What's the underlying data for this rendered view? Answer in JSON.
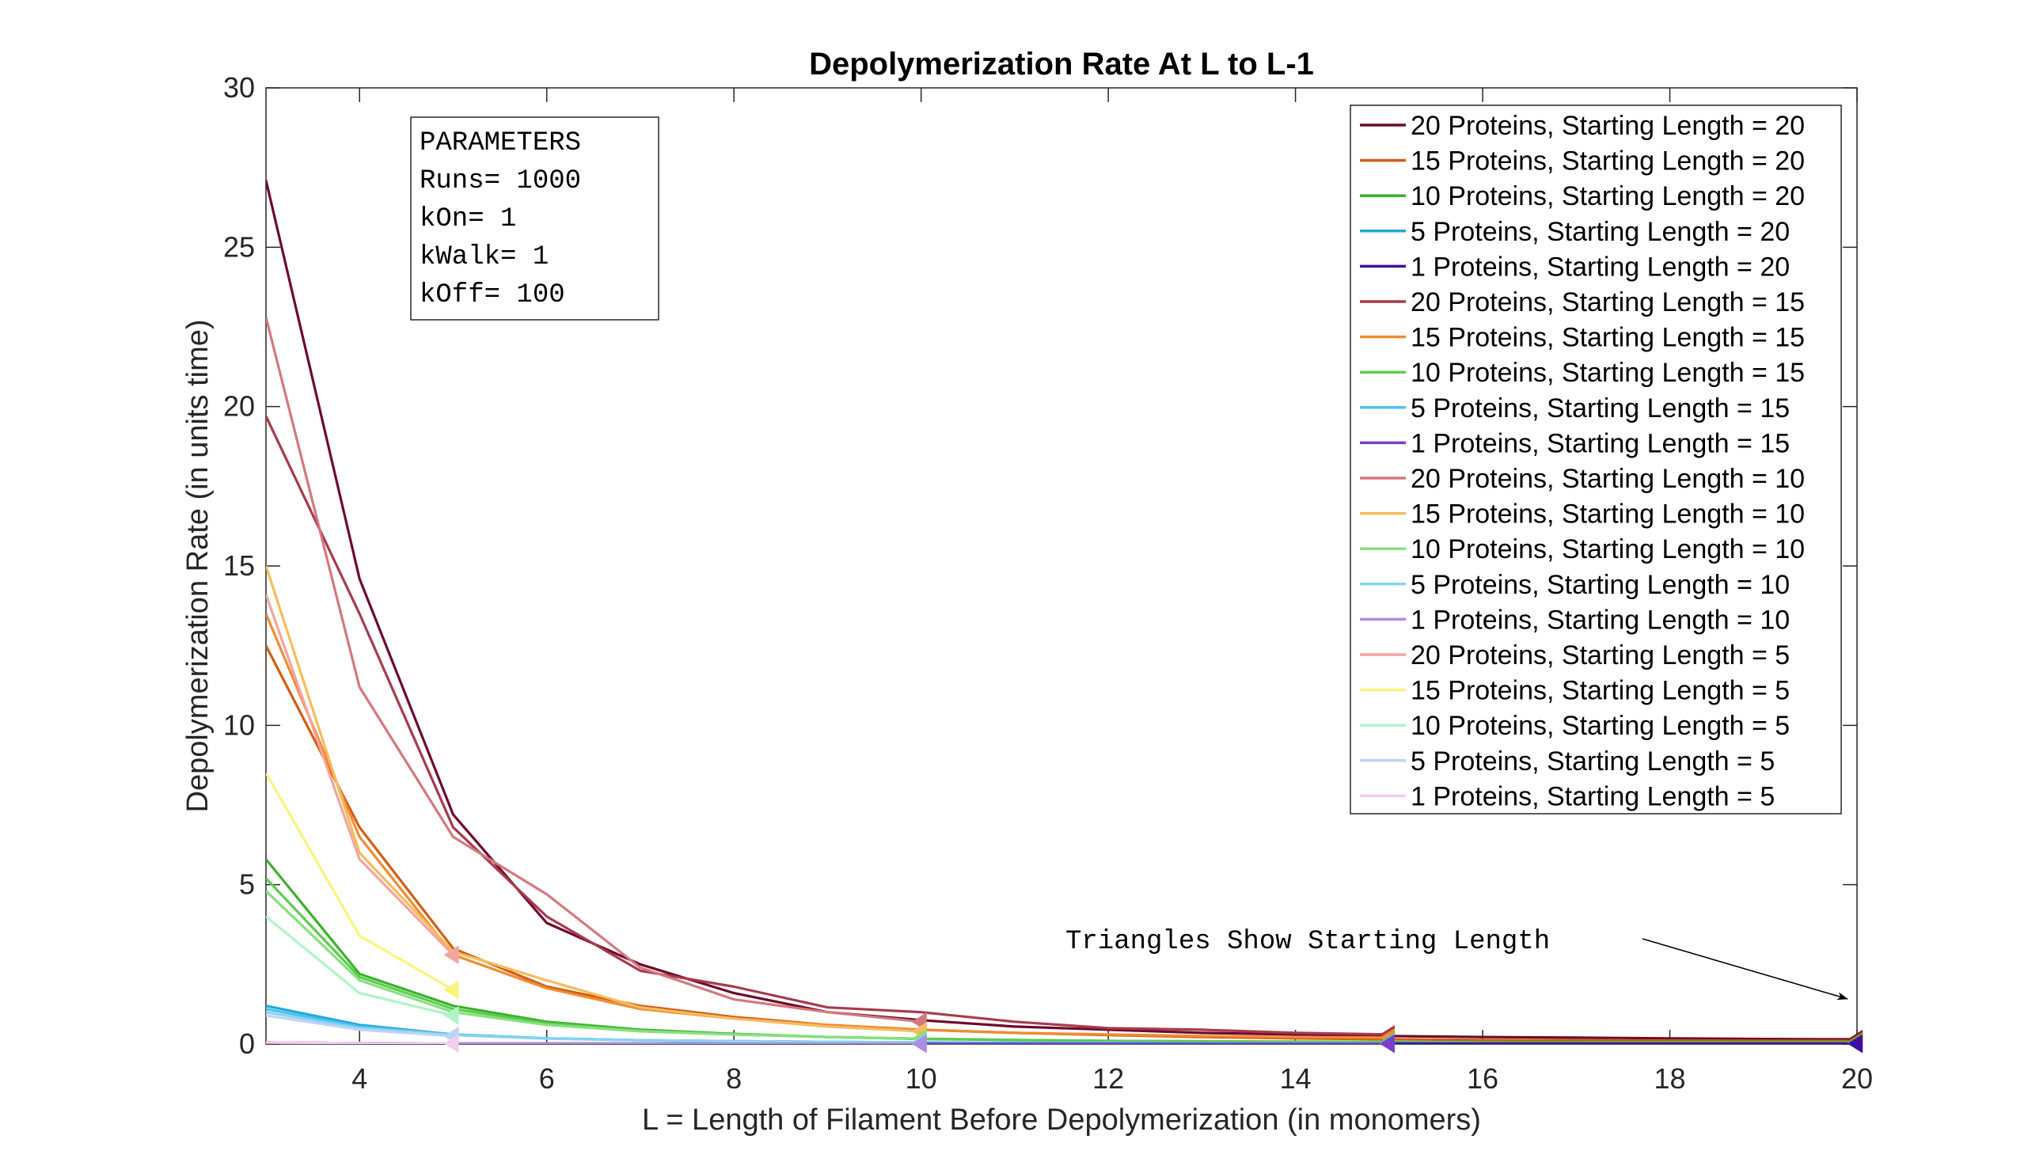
{
  "chart_data": {
    "type": "line",
    "title": "Depolymerization Rate At L to L-1",
    "xlabel": "L = Length of Filament Before Depolymerization (in monomers)",
    "ylabel": "Depolymerization Rate (in units time)",
    "xlim": [
      3,
      20
    ],
    "ylim": [
      0,
      30
    ],
    "xticks": [
      4,
      6,
      8,
      10,
      12,
      14,
      16,
      18,
      20
    ],
    "yticks": [
      0,
      5,
      10,
      15,
      20,
      25,
      30
    ],
    "grid": false,
    "legend_position": "top-right",
    "parameters_box": {
      "lines": [
        "PARAMETERS",
        "Runs= 1000",
        "kOn= 1",
        "kWalk= 1",
        "kOff= 100"
      ]
    },
    "annotation": {
      "text": "Triangles Show Starting Length",
      "points_to_x": 20,
      "points_to_y": 1.5
    },
    "series": [
      {
        "name": "20 Proteins, Starting Length = 20",
        "color": "#6e0a2e",
        "start_length": 20,
        "x": [
          3,
          4,
          5,
          6,
          7,
          8,
          9,
          10,
          11,
          12,
          13,
          14,
          15,
          16,
          17,
          18,
          19,
          20
        ],
        "y": [
          27.1,
          14.6,
          7.2,
          3.8,
          2.5,
          1.6,
          1.0,
          0.75,
          0.55,
          0.45,
          0.35,
          0.3,
          0.25,
          0.22,
          0.2,
          0.18,
          0.16,
          0.15
        ]
      },
      {
        "name": "15 Proteins, Starting Length = 20",
        "color": "#d45c14",
        "start_length": 20,
        "x": [
          3,
          4,
          5,
          6,
          7,
          8,
          9,
          10,
          11,
          12,
          13,
          14,
          15,
          16,
          17,
          18,
          19,
          20
        ],
        "y": [
          12.5,
          6.8,
          3.0,
          1.8,
          1.2,
          0.85,
          0.6,
          0.45,
          0.35,
          0.28,
          0.22,
          0.18,
          0.15,
          0.13,
          0.12,
          0.11,
          0.1,
          0.1
        ]
      },
      {
        "name": "10 Proteins, Starting Length = 20",
        "color": "#38b22a",
        "start_length": 20,
        "x": [
          3,
          4,
          5,
          6,
          7,
          8,
          9,
          10,
          11,
          12,
          13,
          14,
          15,
          16,
          17,
          18,
          19,
          20
        ],
        "y": [
          5.8,
          2.2,
          1.2,
          0.7,
          0.45,
          0.32,
          0.22,
          0.16,
          0.13,
          0.1,
          0.08,
          0.07,
          0.06,
          0.05,
          0.05,
          0.05,
          0.05,
          0.05
        ]
      },
      {
        "name": "5 Proteins, Starting Length = 20",
        "color": "#1fa8dc",
        "start_length": 20,
        "x": [
          3,
          4,
          5,
          6,
          7,
          8,
          9,
          10,
          11,
          12,
          13,
          14,
          15,
          16,
          17,
          18,
          19,
          20
        ],
        "y": [
          1.2,
          0.6,
          0.3,
          0.18,
          0.12,
          0.09,
          0.07,
          0.05,
          0.04,
          0.04,
          0.03,
          0.03,
          0.03,
          0.02,
          0.02,
          0.02,
          0.02,
          0.02
        ]
      },
      {
        "name": "1 Proteins, Starting Length = 20",
        "color": "#3f0fa0",
        "start_length": 20,
        "x": [
          3,
          4,
          5,
          6,
          7,
          8,
          9,
          10,
          11,
          12,
          13,
          14,
          15,
          16,
          17,
          18,
          19,
          20
        ],
        "y": [
          0.05,
          0.03,
          0.02,
          0.02,
          0.02,
          0.01,
          0.01,
          0.01,
          0.01,
          0.01,
          0.01,
          0.01,
          0.01,
          0.01,
          0.01,
          0.01,
          0.01,
          0.01
        ]
      },
      {
        "name": "20 Proteins, Starting Length = 15",
        "color": "#a83a4e",
        "start_length": 15,
        "x": [
          3,
          4,
          5,
          6,
          7,
          8,
          9,
          10,
          11,
          12,
          13,
          14,
          15
        ],
        "y": [
          19.7,
          13.5,
          6.8,
          4.0,
          2.3,
          1.8,
          1.15,
          1.0,
          0.7,
          0.5,
          0.45,
          0.35,
          0.3
        ]
      },
      {
        "name": "15 Proteins, Starting Length = 15",
        "color": "#f08c32",
        "start_length": 15,
        "x": [
          3,
          4,
          5,
          6,
          7,
          8,
          9,
          10,
          11,
          12,
          13,
          14,
          15
        ],
        "y": [
          13.5,
          6.5,
          2.8,
          1.75,
          1.1,
          0.8,
          0.6,
          0.45,
          0.35,
          0.3,
          0.25,
          0.22,
          0.2
        ]
      },
      {
        "name": "10 Proteins, Starting Length = 15",
        "color": "#5ccc50",
        "start_length": 15,
        "x": [
          3,
          4,
          5,
          6,
          7,
          8,
          9,
          10,
          11,
          12,
          13,
          14,
          15
        ],
        "y": [
          5.2,
          2.1,
          1.1,
          0.65,
          0.42,
          0.3,
          0.22,
          0.17,
          0.13,
          0.1,
          0.09,
          0.08,
          0.07
        ]
      },
      {
        "name": "5 Proteins, Starting Length = 15",
        "color": "#4cc0ee",
        "start_length": 15,
        "x": [
          3,
          4,
          5,
          6,
          7,
          8,
          9,
          10,
          11,
          12,
          13,
          14,
          15
        ],
        "y": [
          1.1,
          0.55,
          0.3,
          0.18,
          0.12,
          0.09,
          0.07,
          0.05,
          0.04,
          0.04,
          0.03,
          0.03,
          0.03
        ]
      },
      {
        "name": "1 Proteins, Starting Length = 15",
        "color": "#7840c8",
        "start_length": 15,
        "x": [
          3,
          4,
          5,
          6,
          7,
          8,
          9,
          10,
          11,
          12,
          13,
          14,
          15
        ],
        "y": [
          0.05,
          0.03,
          0.02,
          0.02,
          0.02,
          0.01,
          0.01,
          0.01,
          0.01,
          0.01,
          0.01,
          0.01,
          0.01
        ]
      },
      {
        "name": "20 Proteins, Starting Length = 10",
        "color": "#d4787c",
        "start_length": 10,
        "x": [
          3,
          4,
          5,
          6,
          7,
          8,
          9,
          10
        ],
        "y": [
          22.8,
          11.2,
          6.5,
          4.7,
          2.4,
          1.4,
          1.0,
          0.7
        ]
      },
      {
        "name": "15 Proteins, Starting Length = 10",
        "color": "#f4bc5c",
        "start_length": 10,
        "x": [
          3,
          4,
          5,
          6,
          7,
          8,
          9,
          10
        ],
        "y": [
          15.0,
          6.0,
          2.9,
          2.0,
          1.15,
          0.8,
          0.55,
          0.4
        ]
      },
      {
        "name": "10 Proteins, Starting Length = 10",
        "color": "#88e07c",
        "start_length": 10,
        "x": [
          3,
          4,
          5,
          6,
          7,
          8,
          9,
          10
        ],
        "y": [
          4.8,
          2.0,
          1.0,
          0.6,
          0.4,
          0.3,
          0.22,
          0.17
        ]
      },
      {
        "name": "5 Proteins, Starting Length = 10",
        "color": "#88d4ee",
        "start_length": 10,
        "x": [
          3,
          4,
          5,
          6,
          7,
          8,
          9,
          10
        ],
        "y": [
          1.0,
          0.5,
          0.28,
          0.17,
          0.12,
          0.09,
          0.07,
          0.05
        ]
      },
      {
        "name": "1 Proteins, Starting Length = 10",
        "color": "#ae8ce4",
        "start_length": 10,
        "x": [
          3,
          4,
          5,
          6,
          7,
          8,
          9,
          10
        ],
        "y": [
          0.05,
          0.03,
          0.02,
          0.02,
          0.02,
          0.01,
          0.01,
          0.01
        ]
      },
      {
        "name": "20 Proteins, Starting Length = 5",
        "color": "#f4a49e",
        "start_length": 5,
        "x": [
          3,
          4,
          5
        ],
        "y": [
          14.1,
          5.8,
          2.8
        ]
      },
      {
        "name": "15 Proteins, Starting Length = 5",
        "color": "#f8f47c",
        "start_length": 5,
        "x": [
          3,
          4,
          5
        ],
        "y": [
          8.5,
          3.4,
          1.7
        ]
      },
      {
        "name": "10 Proteins, Starting Length = 5",
        "color": "#b0f4c8",
        "start_length": 5,
        "x": [
          3,
          4,
          5
        ],
        "y": [
          4.0,
          1.6,
          0.9
        ]
      },
      {
        "name": "5 Proteins, Starting Length = 5",
        "color": "#bcd4f4",
        "start_length": 5,
        "x": [
          3,
          4,
          5
        ],
        "y": [
          0.9,
          0.45,
          0.25
        ]
      },
      {
        "name": "1 Proteins, Starting Length = 5",
        "color": "#f4ccec",
        "start_length": 5,
        "x": [
          3,
          4,
          5
        ],
        "y": [
          0.05,
          0.03,
          0.02
        ]
      }
    ]
  }
}
